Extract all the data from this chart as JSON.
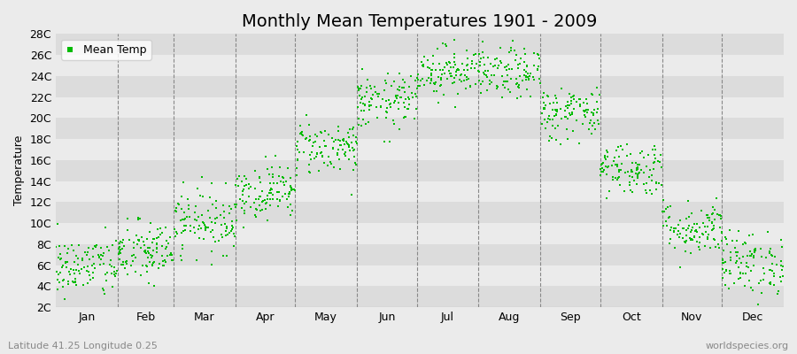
{
  "title": "Monthly Mean Temperatures 1901 - 2009",
  "ylabel": "Temperature",
  "bottom_left_label": "Latitude 41.25 Longitude 0.25",
  "bottom_right_label": "worldspecies.org",
  "legend_label": "Mean Temp",
  "marker_color": "#00BB00",
  "background_color": "#EBEBEB",
  "plot_bg_color": "#EBEBEB",
  "band_color_light": "#DCDCDC",
  "band_color_white": "#EBEBEB",
  "ytick_labels": [
    "2C",
    "4C",
    "6C",
    "8C",
    "10C",
    "12C",
    "14C",
    "16C",
    "18C",
    "20C",
    "22C",
    "24C",
    "26C",
    "28C"
  ],
  "ytick_values": [
    2,
    4,
    6,
    8,
    10,
    12,
    14,
    16,
    18,
    20,
    22,
    24,
    26,
    28
  ],
  "ylim": [
    2,
    28
  ],
  "month_means": [
    5.8,
    7.2,
    10.2,
    13.0,
    17.2,
    21.5,
    24.5,
    24.2,
    20.5,
    15.2,
    9.5,
    6.2
  ],
  "month_stds": [
    1.5,
    1.5,
    1.5,
    1.3,
    1.3,
    1.3,
    1.2,
    1.2,
    1.3,
    1.3,
    1.3,
    1.5
  ],
  "n_years": 109,
  "months": [
    "Jan",
    "Feb",
    "Mar",
    "Apr",
    "May",
    "Jun",
    "Jul",
    "Aug",
    "Sep",
    "Oct",
    "Nov",
    "Dec"
  ],
  "days_in_month": [
    31,
    28,
    31,
    30,
    31,
    30,
    31,
    31,
    30,
    31,
    30,
    31
  ],
  "title_fontsize": 14,
  "label_fontsize": 9,
  "tick_fontsize": 9,
  "marker_size": 3
}
